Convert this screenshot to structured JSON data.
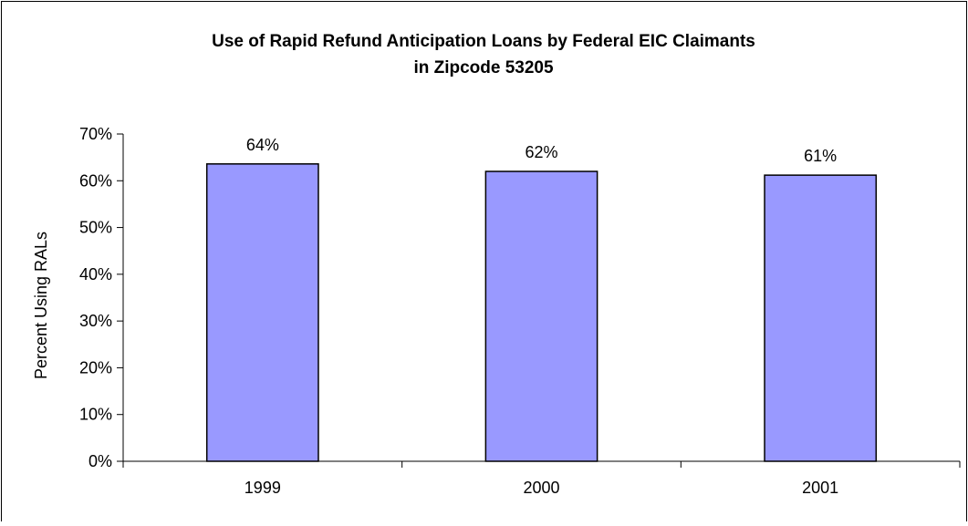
{
  "chart_data": {
    "type": "bar",
    "title_line1": "Use of Rapid Refund Anticipation Loans by Federal EIC Claimants",
    "title_line2": "in Zipcode 53205",
    "xlabel": "",
    "ylabel": "Percent Using RALs",
    "categories": [
      "1999",
      "2000",
      "2001"
    ],
    "values": [
      63.6,
      62.0,
      61.2
    ],
    "data_labels": [
      "64%",
      "62%",
      "61%"
    ],
    "ylim": [
      0,
      70
    ],
    "yticks": [
      0,
      10,
      20,
      30,
      40,
      50,
      60,
      70
    ],
    "ytick_labels": [
      "0%",
      "10%",
      "20%",
      "30%",
      "40%",
      "50%",
      "60%",
      "70%"
    ],
    "grid": false,
    "legend": "none",
    "bar_color": "#9999ff",
    "bar_stroke": "#000000"
  }
}
